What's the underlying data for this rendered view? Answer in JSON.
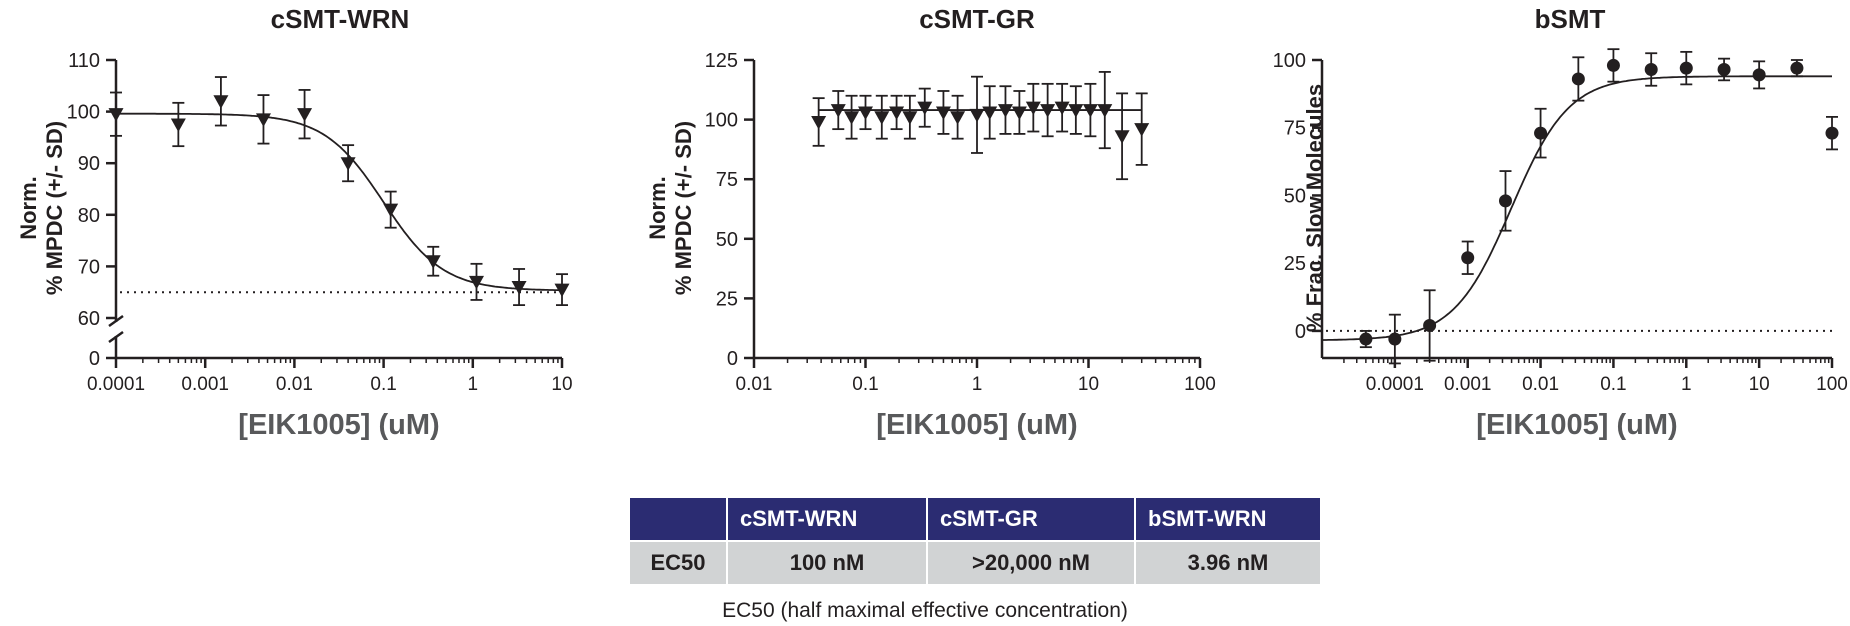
{
  "chart_data": [
    {
      "type": "scatter",
      "title": "cSMT-WRN",
      "xlabel": "[EIK1005] (uM)",
      "ylabel_lines": [
        "Norm.",
        "% MPDC (+/- SD)"
      ],
      "x_scale": "log",
      "xlim": [
        0.0001,
        10
      ],
      "x_ticks": [
        0.0001,
        0.001,
        0.01,
        0.1,
        1,
        10
      ],
      "x_tick_labels": [
        "0.0001",
        "0.001",
        "0.01",
        "0.1",
        "1",
        "10"
      ],
      "y_axis_break": true,
      "y_ticks_upper": [
        60,
        70,
        80,
        90,
        100,
        110
      ],
      "y_ticks_lower": [
        0
      ],
      "ylim_upper": [
        60,
        110
      ],
      "marker": "triangle-down",
      "fit_curve": {
        "top": 99.6,
        "bottom": 65.3,
        "ec50": 0.1,
        "hill": 1.3
      },
      "reference_line": 65,
      "series": [
        {
          "x": [
            0.0001,
            0.0005,
            0.0015,
            0.0045,
            0.013,
            0.04,
            0.12,
            0.36,
            1.1,
            3.3,
            10
          ],
          "y": [
            99.5,
            97.5,
            102,
            98.5,
            99.5,
            90,
            81,
            71,
            67,
            66,
            65.5
          ],
          "sd": [
            4.2,
            4.2,
            4.7,
            4.7,
            4.7,
            3.5,
            3.5,
            2.8,
            3.5,
            3.5,
            3.0
          ]
        }
      ]
    },
    {
      "type": "scatter",
      "title": "cSMT-GR",
      "xlabel": "[EIK1005] (uM)",
      "ylabel_lines": [
        "Norm.",
        "% MPDC (+/- SD)"
      ],
      "x_scale": "log",
      "xlim": [
        0.01,
        100
      ],
      "x_ticks": [
        0.01,
        0.1,
        1,
        10,
        100
      ],
      "x_tick_labels": [
        "0.01",
        "0.1",
        "1",
        "10",
        "100"
      ],
      "ylim": [
        0,
        125
      ],
      "y_ticks": [
        0,
        25,
        50,
        75,
        100,
        125
      ],
      "marker": "triangle-down",
      "fit_line": 104,
      "series": [
        {
          "x": [
            0.038,
            0.057,
            0.075,
            0.1,
            0.14,
            0.19,
            0.25,
            0.34,
            0.5,
            0.67,
            1.0,
            1.3,
            1.8,
            2.4,
            3.2,
            4.3,
            5.8,
            7.7,
            10.4,
            14,
            20,
            30
          ],
          "y": [
            99,
            104,
            101,
            103,
            101,
            103,
            101,
            105,
            103,
            101,
            102,
            103,
            104,
            103,
            105,
            104,
            105,
            104,
            104,
            104,
            93,
            96
          ],
          "sd": [
            10,
            8,
            9,
            7,
            9,
            7,
            9,
            8,
            9,
            9,
            16,
            11,
            10,
            9,
            10,
            11,
            10,
            10,
            11,
            16,
            18,
            15
          ]
        }
      ]
    },
    {
      "type": "scatter",
      "title": "bSMT",
      "xlabel": "[EIK1005] (uM)",
      "ylabel_lines": [
        "% Frac. Slow Molecules"
      ],
      "x_scale": "log",
      "xlim": [
        1e-05,
        100
      ],
      "x_ticks": [
        0.0001,
        0.001,
        0.01,
        0.1,
        1,
        10,
        100
      ],
      "x_tick_labels": [
        "0.0001",
        "0.001",
        "0.01",
        "0.1",
        "1",
        "10",
        "100"
      ],
      "ylim": [
        -10,
        100
      ],
      "y_ticks": [
        0,
        25,
        50,
        75,
        100
      ],
      "marker": "circle",
      "fit_curve": {
        "top": 94,
        "bottom": -3.5,
        "ec50": 0.00396,
        "hill": 1.1
      },
      "reference_line": 0,
      "series": [
        {
          "x": [
            4e-05,
            0.0001,
            0.0003,
            0.001,
            0.0033,
            0.01,
            0.033,
            0.1,
            0.33,
            1,
            3.3,
            10,
            33,
            100
          ],
          "y": [
            -3,
            -3,
            2,
            27,
            48,
            73,
            93,
            98,
            96.5,
            97,
            96.5,
            94.5,
            97,
            73
          ],
          "sd": [
            3,
            9,
            13,
            6,
            11,
            9,
            8,
            6,
            6,
            6,
            4,
            5,
            3,
            6
          ]
        }
      ]
    }
  ],
  "table": {
    "header": [
      "",
      "cSMT-WRN",
      "cSMT-GR",
      "bSMT-WRN"
    ],
    "row": [
      "EC50",
      "100 nM",
      ">20,000 nM",
      "3.96 nM"
    ],
    "header_color": "#2b2c72",
    "row_color": "#d1d3d4"
  },
  "caption": "EC50 (half maximal effective concentration)"
}
